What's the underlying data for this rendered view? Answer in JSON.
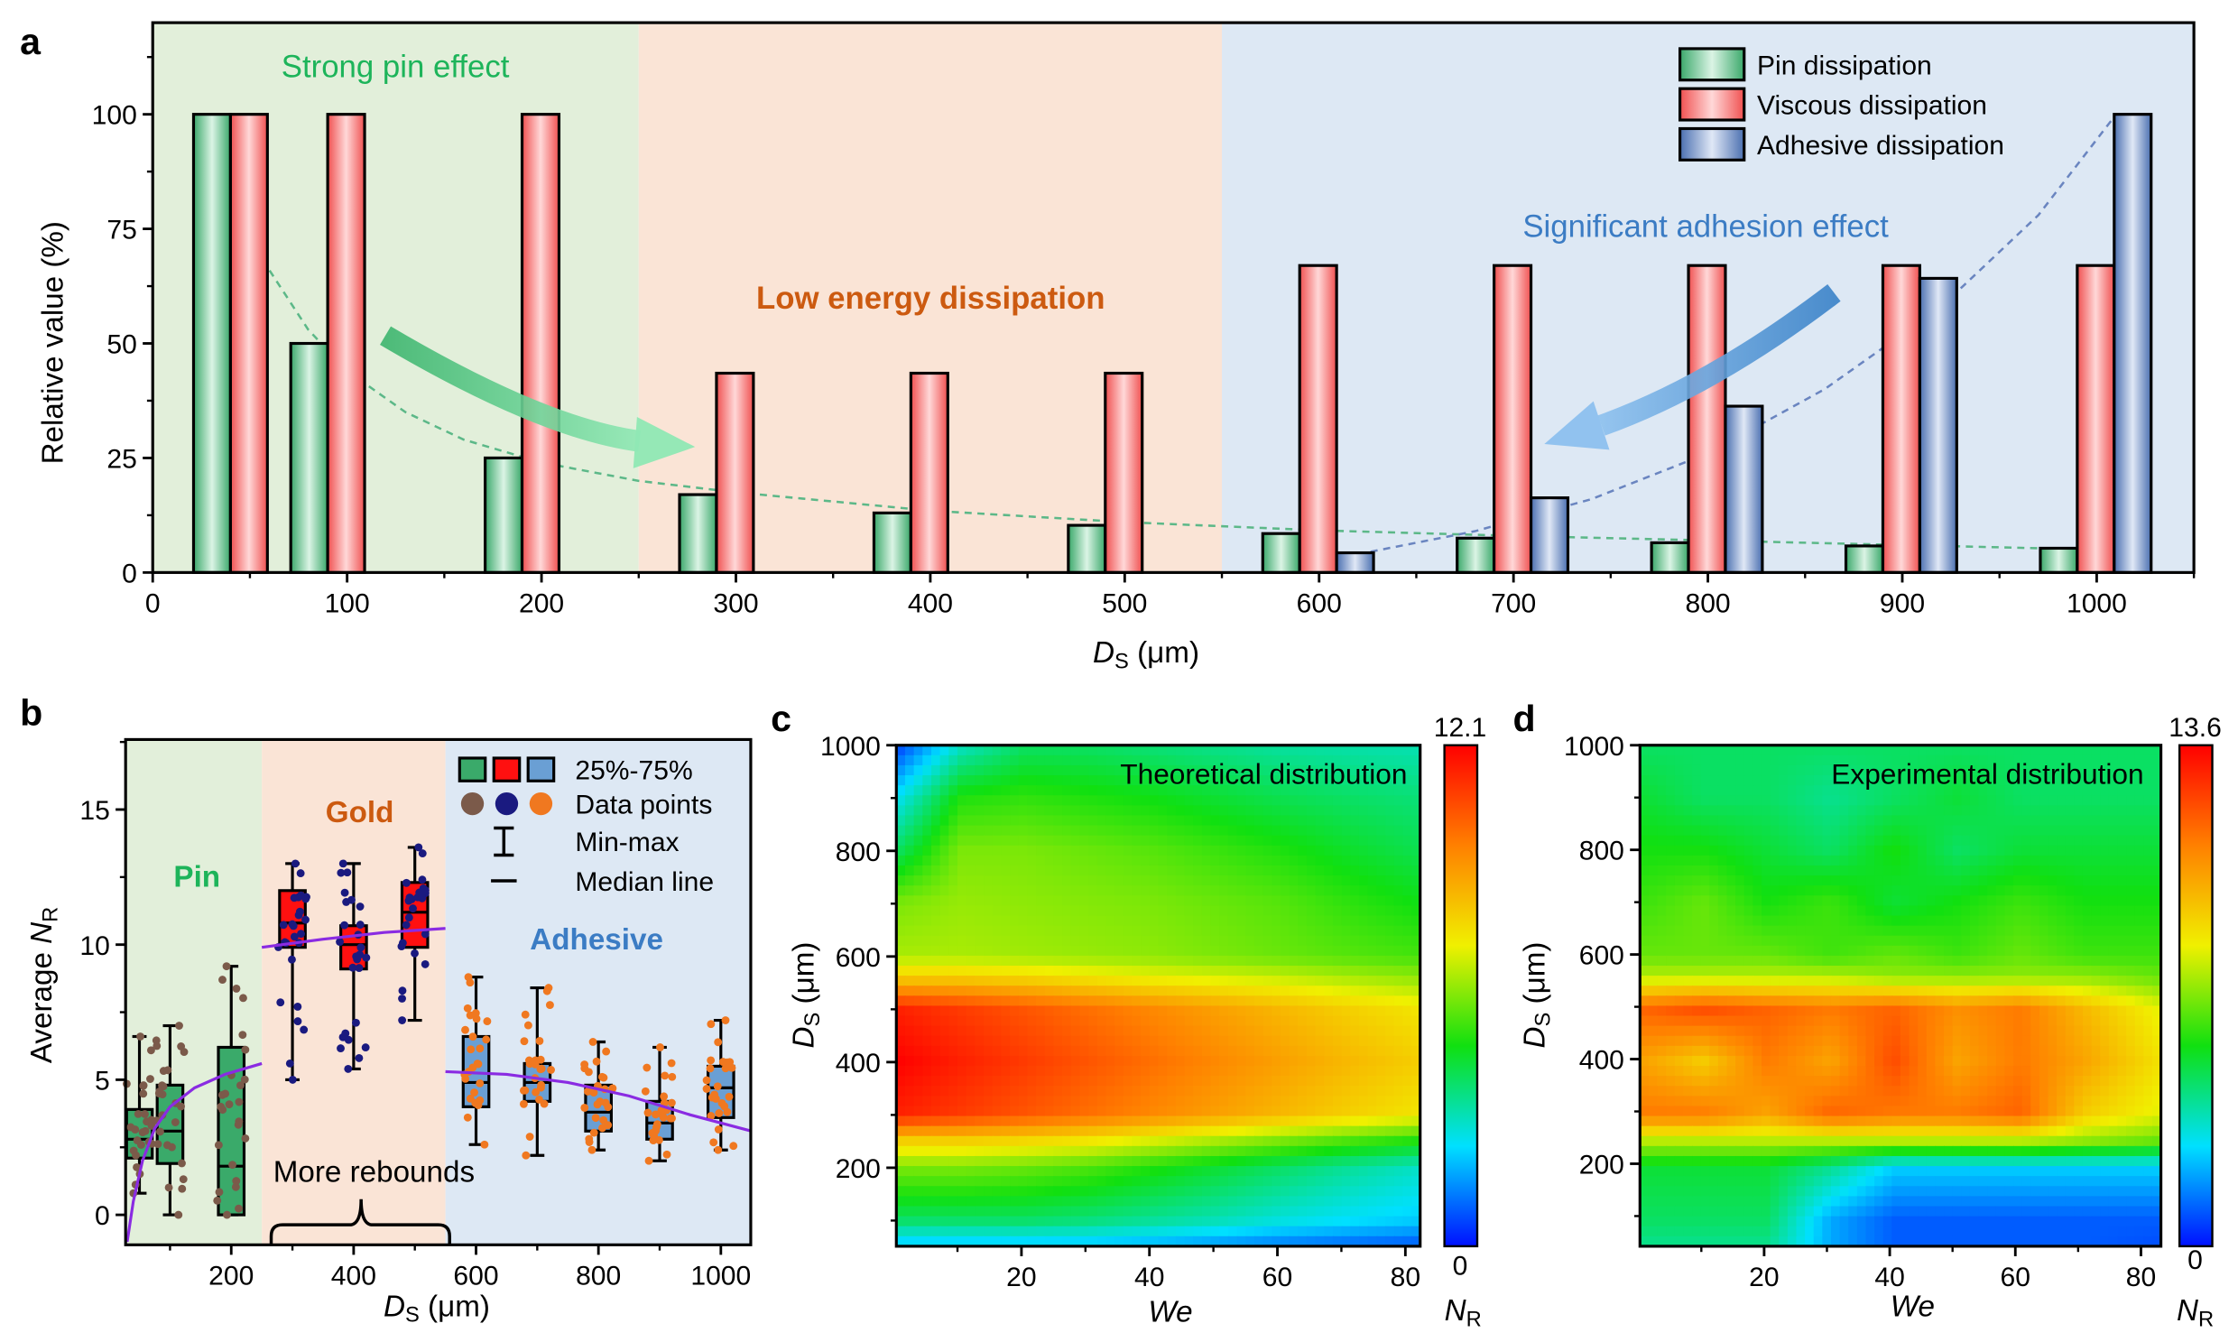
{
  "panels": {
    "a": "a",
    "b": "b",
    "c": "c",
    "d": "d"
  },
  "chart_data": [
    {
      "panel": "a",
      "type": "bar",
      "xlabel": {
        "main": "D",
        "sub": "S",
        "rest": " (μm)"
      },
      "ylabel": "Relative value (%)",
      "xlim": [
        0,
        1050
      ],
      "ylim": [
        0,
        120
      ],
      "xticks": [
        0,
        100,
        200,
        300,
        400,
        500,
        600,
        700,
        800,
        900,
        1000
      ],
      "yticks": [
        0,
        25,
        50,
        75,
        100
      ],
      "categories": [
        50,
        100,
        200,
        300,
        400,
        500,
        600,
        700,
        800,
        900,
        1000
      ],
      "series": [
        {
          "name": "Pin dissipation",
          "values": [
            100,
            50,
            25,
            17,
            13,
            10.3,
            8.5,
            7.5,
            6.5,
            5.8,
            5.3
          ],
          "color": "#3aa86a"
        },
        {
          "name": "Viscous dissipation",
          "values": [
            100,
            100,
            100,
            43.5,
            43.5,
            43.5,
            67,
            67,
            67,
            67,
            67
          ],
          "color": "#f05a5a"
        },
        {
          "name": "Adhesive dissipation",
          "values": [
            null,
            null,
            null,
            null,
            null,
            null,
            4.3,
            16.3,
            36.3,
            64.2,
            100
          ],
          "color": "#4a6fb0"
        }
      ],
      "fits": [
        {
          "name": "pin-trend",
          "color": "#5cb888",
          "points": [
            [
              30,
              100
            ],
            [
              45,
              80
            ],
            [
              60,
              66
            ],
            [
              80,
              53
            ],
            [
              100,
              44
            ],
            [
              130,
              35
            ],
            [
              160,
              29
            ],
            [
              200,
              24
            ],
            [
              250,
              20
            ],
            [
              300,
              17.5
            ],
            [
              400,
              13.5
            ],
            [
              500,
              11
            ],
            [
              600,
              9.2
            ],
            [
              700,
              8
            ],
            [
              800,
              7
            ],
            [
              900,
              6
            ],
            [
              1000,
              5
            ]
          ]
        },
        {
          "name": "adhesion-trend",
          "color": "#6a85c0",
          "points": [
            [
              620,
              4
            ],
            [
              680,
              9
            ],
            [
              740,
              16
            ],
            [
              800,
              26
            ],
            [
              860,
              40
            ],
            [
              920,
              58
            ],
            [
              970,
              78
            ],
            [
              1010,
              100
            ]
          ]
        }
      ],
      "regions": [
        {
          "from": 0,
          "to": 250,
          "color": "#e2efda"
        },
        {
          "from": 250,
          "to": 550,
          "color": "#fae4d6"
        },
        {
          "from": 550,
          "to": 1050,
          "color": "#dde8f4"
        }
      ],
      "annotations": {
        "strong_pin": "Strong pin effect",
        "low_energy": "Low energy dissipation",
        "adhesion": "Significant adhesion effect"
      },
      "legend_position": "top-right"
    },
    {
      "panel": "b",
      "type": "box",
      "xlabel": {
        "main": "D",
        "sub": "S",
        "rest": " (μm)"
      },
      "ylabel": {
        "main": "Average ",
        "italic": "N",
        "sub": "R"
      },
      "xlim": [
        -15,
        1050
      ],
      "ylim": [
        -1.1,
        17.6
      ],
      "xticks": [
        200,
        400,
        600,
        800,
        1000
      ],
      "yticks": [
        0,
        5,
        10,
        15
      ],
      "boxes": [
        {
          "x": 50,
          "q1": 2.1,
          "median": 2.8,
          "q3": 3.9,
          "min": 0.8,
          "max": 6.6,
          "group": "pin"
        },
        {
          "x": 100,
          "q1": 1.9,
          "median": 3.1,
          "q3": 4.8,
          "min": 0,
          "max": 7.0,
          "group": "pin"
        },
        {
          "x": 200,
          "q1": 0,
          "median": 1.8,
          "q3": 6.2,
          "min": 0,
          "max": 9.2,
          "group": "pin"
        },
        {
          "x": 300,
          "q1": 9.9,
          "median": 10.8,
          "q3": 12.0,
          "min": 5.0,
          "max": 13.0,
          "group": "gold"
        },
        {
          "x": 400,
          "q1": 9.1,
          "median": 10.0,
          "q3": 10.7,
          "min": 5.4,
          "max": 13.0,
          "group": "gold"
        },
        {
          "x": 500,
          "q1": 9.9,
          "median": 11.2,
          "q3": 12.3,
          "min": 7.2,
          "max": 13.6,
          "group": "gold"
        },
        {
          "x": 600,
          "q1": 4.0,
          "median": 4.9,
          "q3": 6.6,
          "min": 2.6,
          "max": 8.8,
          "group": "adhesive"
        },
        {
          "x": 700,
          "q1": 4.2,
          "median": 4.9,
          "q3": 5.6,
          "min": 2.2,
          "max": 8.4,
          "group": "adhesive"
        },
        {
          "x": 800,
          "q1": 3.1,
          "median": 3.8,
          "q3": 4.8,
          "min": 2.4,
          "max": 6.4,
          "group": "adhesive"
        },
        {
          "x": 900,
          "q1": 2.8,
          "median": 3.4,
          "q3": 4.2,
          "min": 2.0,
          "max": 6.2,
          "group": "adhesive"
        },
        {
          "x": 1000,
          "q1": 3.6,
          "median": 4.7,
          "q3": 5.5,
          "min": 2.4,
          "max": 7.2,
          "group": "adhesive"
        }
      ],
      "groups": {
        "pin": {
          "box": "#3aaa6a",
          "point": "#7b5a4a"
        },
        "gold": {
          "box": "#ff1010",
          "point": "#1a1a80"
        },
        "adhesive": {
          "box": "#6a9fd4",
          "point": "#f07820"
        }
      },
      "fits": [
        {
          "points": [
            [
              30,
              -1
            ],
            [
              40,
              0.5
            ],
            [
              55,
              2
            ],
            [
              75,
              3.2
            ],
            [
              100,
              4.0
            ],
            [
              140,
              4.7
            ],
            [
              190,
              5.2
            ],
            [
              250,
              5.6
            ]
          ]
        },
        {
          "points": [
            [
              250,
              9.9
            ],
            [
              350,
              10.2
            ],
            [
              450,
              10.45
            ],
            [
              550,
              10.6
            ]
          ]
        },
        {
          "points": [
            [
              550,
              5.3
            ],
            [
              650,
              5.2
            ],
            [
              750,
              4.9
            ],
            [
              850,
              4.4
            ],
            [
              950,
              3.7
            ],
            [
              1050,
              3.1
            ]
          ]
        }
      ],
      "regions": [
        {
          "from": -15,
          "to": 250,
          "color": "#e2efda"
        },
        {
          "from": 250,
          "to": 550,
          "color": "#fae4d6"
        },
        {
          "from": 550,
          "to": 1050,
          "color": "#dde8f4"
        }
      ],
      "labels": {
        "pin": "Pin",
        "gold": "Gold",
        "adhesive": "Adhesive",
        "more_rebounds": "More rebounds"
      },
      "legend": {
        "box": "25%-75%",
        "points": "Data points",
        "minmax": "Min-max",
        "median": "Median line"
      },
      "legend_position": "top-right"
    },
    {
      "panel": "c",
      "type": "heatmap",
      "title": "Theoretical distribution",
      "xlabel": "We",
      "ylabel": {
        "main": "D",
        "sub": "S",
        "rest": " (μm)"
      },
      "xlim": [
        0,
        82
      ],
      "ylim": [
        50,
        1000
      ],
      "xticks": [
        20,
        40,
        60,
        80
      ],
      "yticks": [
        200,
        400,
        600,
        800,
        1000
      ],
      "colorbar": {
        "min": 0,
        "max": 12.1,
        "min_label": "0",
        "max_label": "12.1",
        "label_main": "N",
        "label_sub": "R"
      },
      "we": [
        0,
        10,
        20,
        30,
        40,
        50,
        60,
        70,
        82
      ],
      "ds": [
        50,
        100,
        200,
        250,
        300,
        400,
        500,
        560,
        600,
        700,
        800,
        900,
        1000
      ],
      "values": [
        [
          2,
          2,
          2,
          2,
          1.8,
          1.5,
          1.2,
          1,
          0.8
        ],
        [
          4,
          4,
          4,
          3.8,
          3.5,
          3.2,
          2.8,
          2.5,
          2.2
        ],
        [
          6,
          6,
          5.8,
          5.5,
          5,
          4.5,
          4,
          3.5,
          3
        ],
        [
          8,
          8,
          7.8,
          7.5,
          7,
          6.5,
          6,
          5.5,
          5
        ],
        [
          11.5,
          11,
          10.5,
          10,
          9.5,
          9,
          8.5,
          8,
          7.5
        ],
        [
          12.1,
          11.5,
          11,
          10.5,
          10,
          9.5,
          9,
          8.5,
          8
        ],
        [
          11.5,
          11,
          10.5,
          10,
          9.5,
          9,
          8.5,
          8,
          7.5
        ],
        [
          8,
          8,
          7.8,
          7.5,
          7.2,
          7,
          6.8,
          6.5,
          6.2
        ],
        [
          6.5,
          6.5,
          6.4,
          6.3,
          6.2,
          6,
          5.8,
          5.6,
          5.4
        ],
        [
          6,
          6.3,
          6.2,
          6.1,
          6,
          5.8,
          5.6,
          5.2,
          4.8
        ],
        [
          4,
          6,
          6,
          5.8,
          5.6,
          5.3,
          5,
          4.6,
          4.2
        ],
        [
          2.5,
          5,
          5.2,
          5,
          4.8,
          4.5,
          4.2,
          4,
          3.8
        ],
        [
          0.5,
          3,
          4,
          4,
          3.8,
          3.6,
          3.4,
          3.3,
          3.2
        ]
      ]
    },
    {
      "panel": "d",
      "type": "heatmap",
      "title": "Experimental distribution",
      "xlabel": "We",
      "ylabel": {
        "main": "D",
        "sub": "S",
        "rest": " (μm)"
      },
      "xlim": [
        0,
        82
      ],
      "ylim": [
        50,
        1000
      ],
      "xticks": [
        20,
        40,
        60,
        80
      ],
      "yticks": [
        200,
        400,
        600,
        800,
        1000
      ],
      "colorbar": {
        "min": 0,
        "max": 13.6,
        "min_label": "0",
        "max_label": "13.6",
        "label_main": "N",
        "label_sub": "R"
      },
      "we": [
        1,
        10,
        20,
        30,
        40,
        50,
        60,
        70,
        82
      ],
      "ds": [
        50,
        100,
        200,
        250,
        300,
        400,
        500,
        560,
        600,
        700,
        800,
        900,
        1000
      ],
      "values": [
        [
          4,
          4,
          4,
          2,
          1,
          1,
          1,
          1,
          0.8
        ],
        [
          4.5,
          4.5,
          4.5,
          2,
          1,
          1,
          1,
          1,
          1
        ],
        [
          5,
          5,
          5,
          4,
          2.5,
          2.5,
          2.5,
          2.5,
          2.5
        ],
        [
          7.5,
          7.5,
          7.5,
          7.5,
          7.5,
          7.5,
          7.5,
          7,
          6.5
        ],
        [
          11,
          11,
          10,
          11.5,
          11,
          11,
          11.5,
          9,
          8
        ],
        [
          10,
          9,
          11,
          10,
          12,
          10,
          11,
          10,
          8.5
        ],
        [
          11.5,
          12,
          11.5,
          11,
          11.5,
          10.5,
          11,
          9.5,
          8
        ],
        [
          7.5,
          7.5,
          7.5,
          7.5,
          7,
          7,
          7,
          7,
          6.5
        ],
        [
          6.5,
          6.5,
          6.5,
          6,
          6.5,
          6,
          6.5,
          6,
          6
        ],
        [
          6,
          6.5,
          5.5,
          6,
          5,
          5.5,
          6,
          5.5,
          5.5
        ],
        [
          5.5,
          5.5,
          5,
          4.5,
          5.5,
          4.5,
          5,
          5,
          5
        ],
        [
          5,
          4.5,
          4.5,
          4,
          4.5,
          5,
          4.5,
          4.5,
          4.5
        ],
        [
          4.5,
          4.5,
          4.5,
          4.5,
          4.5,
          4.5,
          4.5,
          4.5,
          4.5
        ]
      ]
    }
  ],
  "colormap": [
    "#0010ff",
    "#00e0ff",
    "#10e010",
    "#f0f000",
    "#ff8000",
    "#ff0000"
  ]
}
